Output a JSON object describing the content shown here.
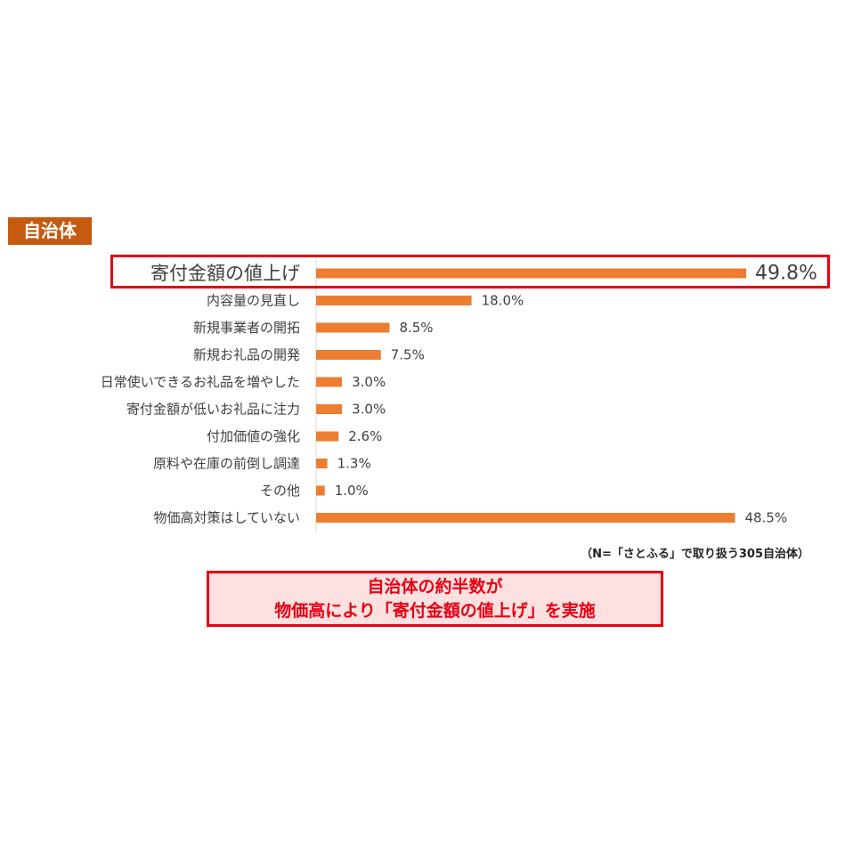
{
  "tag_label": "自治体",
  "note": "（N=「さとふる」で取り扱う305自治体）",
  "callout": {
    "line1": "自治体の約半数が",
    "line2": "物価高により「寄付金額の値上げ」を実施"
  },
  "colors": {
    "bar": "#ed7d31",
    "tag_bg": "#c55a11",
    "highlight": "#e60012",
    "callout_bg": "#fde0e0"
  },
  "chart_data": {
    "type": "bar",
    "orientation": "horizontal",
    "categories": [
      "寄付金額の値上げ",
      "内容量の見直し",
      "新規事業者の開拓",
      "新規お礼品の開発",
      "日常使いできるお礼品を増やした",
      "寄付金額が低いお礼品に注力",
      "付加価値の強化",
      "原料や在庫の前倒し調達",
      "その他",
      "物価高対策はしていない"
    ],
    "values": [
      49.8,
      18.0,
      8.5,
      7.5,
      3.0,
      3.0,
      2.6,
      1.3,
      1.0,
      48.5
    ],
    "data_labels": [
      "49.8%",
      "18.0%",
      "8.5%",
      "7.5%",
      "3.0%",
      "3.0%",
      "2.6%",
      "1.3%",
      "1.0%",
      "48.5%"
    ],
    "highlighted_index": 0,
    "xlim": [
      0,
      50
    ],
    "grid": false,
    "legend": "none"
  }
}
